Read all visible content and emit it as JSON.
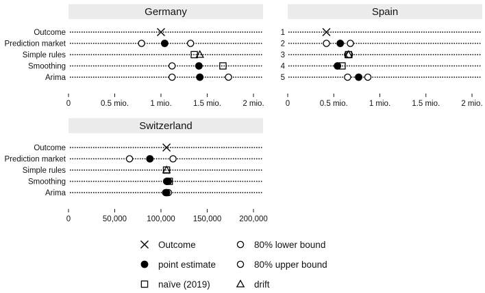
{
  "chart_data": [
    {
      "type": "scatter",
      "title": "Germany",
      "categories": [
        "Outcome",
        "Prediction market",
        "Simple rules",
        "Smoothing",
        "Arima"
      ],
      "xlim": [
        0,
        2000000
      ],
      "tick_values": [
        0,
        500000,
        1000000,
        1500000,
        2000000
      ],
      "tick_labels": [
        "0",
        "0.5 mio.",
        "1 mio.",
        "1.5 mio.",
        "2 mio."
      ],
      "series": [
        {
          "name": "Outcome",
          "marker": "x",
          "points": [
            {
              "row": "Outcome",
              "x": 1000000
            }
          ]
        },
        {
          "name": "80% lower bound",
          "marker": "circle-open",
          "points": [
            {
              "row": "Prediction market",
              "x": 790000
            },
            {
              "row": "Smoothing",
              "x": 1120000
            },
            {
              "row": "Arima",
              "x": 1120000
            }
          ]
        },
        {
          "name": "80% upper bound",
          "marker": "circle-open",
          "points": [
            {
              "row": "Prediction market",
              "x": 1320000
            },
            {
              "row": "Arima",
              "x": 1730000
            }
          ]
        },
        {
          "name": "point estimate",
          "marker": "circle-filled",
          "points": [
            {
              "row": "Prediction market",
              "x": 1040000
            },
            {
              "row": "Smoothing",
              "x": 1410000
            },
            {
              "row": "Arima",
              "x": 1420000
            }
          ]
        },
        {
          "name": "naïve (2019)",
          "marker": "square",
          "points": [
            {
              "row": "Simple rules",
              "x": 1360000
            },
            {
              "row": "Smoothing",
              "x": 1670000
            }
          ]
        },
        {
          "name": "drift",
          "marker": "triangle",
          "points": [
            {
              "row": "Simple rules",
              "x": 1420000
            }
          ]
        }
      ]
    },
    {
      "type": "scatter",
      "title": "Spain",
      "categories": [
        "1",
        "2",
        "3",
        "4",
        "5"
      ],
      "xlim": [
        0,
        2000000
      ],
      "tick_values": [
        0,
        500000,
        1000000,
        1500000,
        2000000
      ],
      "tick_labels": [
        "0",
        "0.5 mio.",
        "1 mio.",
        "1.5 mio.",
        "2 mio."
      ],
      "series": [
        {
          "name": "Outcome",
          "marker": "x",
          "points": [
            {
              "row": "1",
              "x": 420000
            }
          ]
        },
        {
          "name": "80% lower bound",
          "marker": "circle-open",
          "points": [
            {
              "row": "2",
              "x": 420000
            },
            {
              "row": "3",
              "x": 650000
            },
            {
              "row": "4",
              "x": 540000
            },
            {
              "row": "5",
              "x": 650000
            }
          ]
        },
        {
          "name": "80% upper bound",
          "marker": "circle-open",
          "points": [
            {
              "row": "2",
              "x": 680000
            },
            {
              "row": "3",
              "x": 670000
            },
            {
              "row": "5",
              "x": 870000
            }
          ]
        },
        {
          "name": "point estimate",
          "marker": "circle-filled",
          "points": [
            {
              "row": "2",
              "x": 570000
            },
            {
              "row": "4",
              "x": 540000
            },
            {
              "row": "5",
              "x": 770000
            }
          ]
        },
        {
          "name": "naïve (2019)",
          "marker": "square",
          "points": [
            {
              "row": "3",
              "x": 660000
            },
            {
              "row": "4",
              "x": 590000
            }
          ]
        },
        {
          "name": "drift",
          "marker": "triangle",
          "points": [
            {
              "row": "3",
              "x": 660000
            }
          ]
        }
      ]
    },
    {
      "type": "scatter",
      "title": "Switzerland",
      "categories": [
        "Outcome",
        "Prediction market",
        "Simple rules",
        "Smoothing",
        "Arima"
      ],
      "xlim": [
        0,
        200000
      ],
      "tick_values": [
        0,
        50000,
        100000,
        150000,
        200000
      ],
      "tick_labels": [
        "0",
        "50,000",
        "100,000",
        "150,000",
        "200,000"
      ],
      "series": [
        {
          "name": "Outcome",
          "marker": "x",
          "points": [
            {
              "row": "Outcome",
              "x": 106000
            }
          ]
        },
        {
          "name": "80% lower bound",
          "marker": "circle-open",
          "points": [
            {
              "row": "Prediction market",
              "x": 66000
            },
            {
              "row": "Smoothing",
              "x": 106000
            },
            {
              "row": "Arima",
              "x": 105000
            }
          ]
        },
        {
          "name": "80% upper bound",
          "marker": "circle-open",
          "points": [
            {
              "row": "Prediction market",
              "x": 113000
            },
            {
              "row": "Smoothing",
              "x": 108000
            },
            {
              "row": "Arima",
              "x": 108000
            }
          ]
        },
        {
          "name": "point estimate",
          "marker": "circle-filled",
          "points": [
            {
              "row": "Prediction market",
              "x": 88000
            },
            {
              "row": "Smoothing",
              "x": 107000
            },
            {
              "row": "Arima",
              "x": 106000
            }
          ]
        },
        {
          "name": "naïve (2019)",
          "marker": "square",
          "points": [
            {
              "row": "Simple rules",
              "x": 106000
            },
            {
              "row": "Smoothing",
              "x": 109000
            }
          ]
        },
        {
          "name": "drift",
          "marker": "triangle",
          "points": [
            {
              "row": "Simple rules",
              "x": 106000
            }
          ]
        }
      ]
    }
  ],
  "legend": [
    {
      "label": "Outcome",
      "marker": "x"
    },
    {
      "label": "80% lower bound",
      "marker": "circle-open"
    },
    {
      "label": "point estimate",
      "marker": "circle-filled"
    },
    {
      "label": "80% upper bound",
      "marker": "circle-open"
    },
    {
      "label": "naïve (2019)",
      "marker": "square"
    },
    {
      "label": "drift",
      "marker": "triangle"
    }
  ],
  "colors": {
    "marker": "#000000",
    "strip": "#ececec",
    "gridline": "#000000"
  }
}
